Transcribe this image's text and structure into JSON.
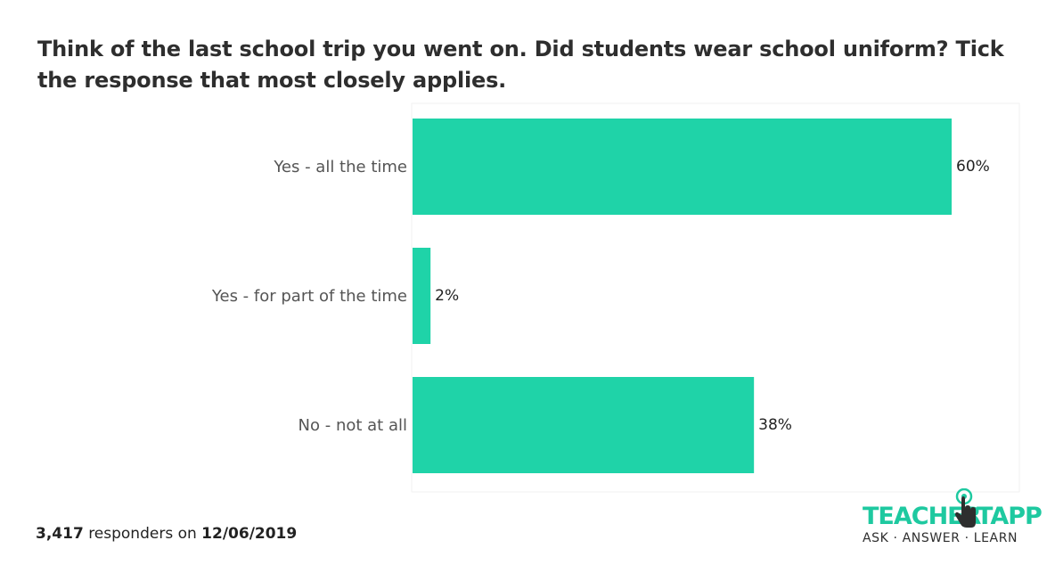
{
  "chart_data": {
    "type": "bar",
    "orientation": "horizontal",
    "title": "Think of the last school trip you went on. Did students wear school uniform? Tick the response that most closely applies.",
    "categories": [
      "Yes - all the time",
      "Yes - for part of the time",
      "No - not at all"
    ],
    "values": [
      60,
      2,
      38
    ],
    "value_labels": [
      "60%",
      "2%",
      "38%"
    ],
    "unit": "%",
    "xlim": [
      0,
      60
    ],
    "grid": false,
    "legend": "none",
    "bar_color": "#1fd3a8"
  },
  "footer": {
    "count": "3,417",
    "text": "responders on",
    "date": "12/06/2019"
  },
  "logo": {
    "word_left": "TEACHER",
    "word_right": "TAPP",
    "tagline": "ASK · ANSWER · LEARN",
    "color": "#1ec9a0"
  }
}
